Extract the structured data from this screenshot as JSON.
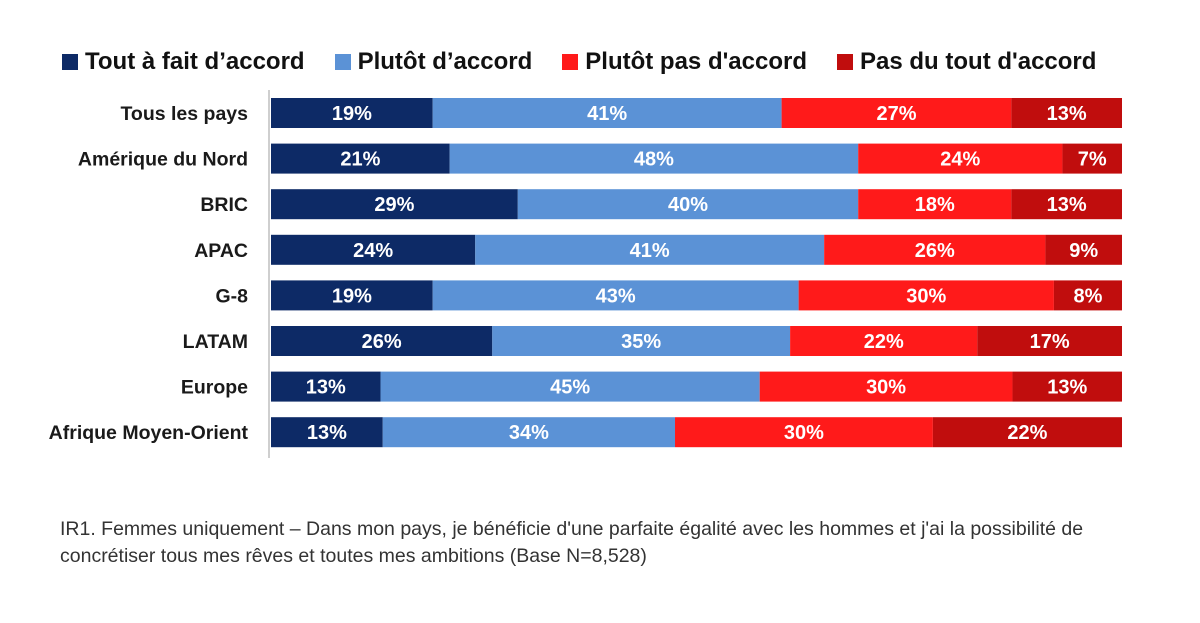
{
  "chart_data": {
    "type": "bar",
    "orientation": "horizontal",
    "stacked": true,
    "normalized_percent": true,
    "categories": [
      "Tous les pays",
      "Amérique du Nord",
      "BRIC",
      "APAC",
      "G-8",
      "LATAM",
      "Europe",
      "Afrique Moyen-Orient"
    ],
    "series": [
      {
        "name": "Tout à fait d’accord",
        "color": "#0d2a66",
        "values": [
          19,
          21,
          29,
          24,
          19,
          26,
          13,
          13
        ]
      },
      {
        "name": "Plutôt d’accord",
        "color": "#5b92d6",
        "values": [
          41,
          48,
          40,
          41,
          43,
          35,
          45,
          34
        ]
      },
      {
        "name": "Plutôt pas d'accord",
        "color": "#ff1a1a",
        "values": [
          27,
          24,
          18,
          26,
          30,
          22,
          30,
          30
        ]
      },
      {
        "name": "Pas du tout d'accord",
        "color": "#c00d0d",
        "values": [
          13,
          7,
          13,
          9,
          8,
          17,
          13,
          22
        ]
      }
    ],
    "value_suffix": "%",
    "legend_position": "top",
    "grid": false,
    "footnote": "IR1. Femmes uniquement – Dans mon pays, je bénéficie d'une parfaite égalité avec les hommes et j'ai la possibilité de concrétiser tous mes rêves et toutes mes ambitions (Base N=8,528)"
  }
}
